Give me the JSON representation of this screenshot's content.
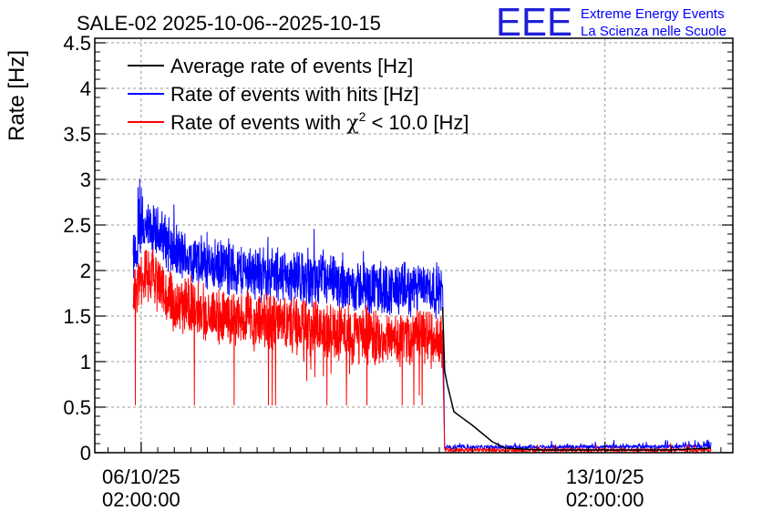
{
  "chart_data": {
    "type": "line",
    "title": "SALE-02 2025-10-06--2025-10-15",
    "ylabel": "Rate [Hz]",
    "xlabel": "",
    "ylim": [
      0,
      4.55
    ],
    "yticks": [
      0,
      0.5,
      1,
      1.5,
      2,
      2.5,
      3,
      3.5,
      4,
      4.5
    ],
    "ytick_labels": [
      "0",
      "0.5",
      "1",
      "1.5",
      "2",
      "2.5",
      "3",
      "3.5",
      "4",
      "4.5"
    ],
    "xlim_days": [
      -0.7,
      8.93
    ],
    "xticks": [
      {
        "day": 0,
        "line1": "06/10/25",
        "line2": "02:00:00"
      },
      {
        "day": 7,
        "line1": "13/10/25",
        "line2": "02:00:00"
      }
    ],
    "grid": true,
    "legend_position": "top-left",
    "legend": [
      {
        "label": "Average rate of events [Hz]",
        "color": "#000000"
      },
      {
        "label": "Rate of events with hits [Hz]",
        "color": "#0000ff"
      },
      {
        "label_pre": "Rate of events with ",
        "label_sym": "χ",
        "label_sup": "2",
        "label_post": " < 10.0 [Hz]",
        "color": "#ff0000"
      }
    ],
    "series": [
      {
        "name": "Average rate of events [Hz]",
        "color": "#000000",
        "x": [
          -0.12,
          0.5,
          1.0,
          2.0,
          3.0,
          4.0,
          4.55,
          4.58,
          4.62,
          4.72,
          5.0,
          5.3,
          5.5,
          6.0,
          7.0,
          8.0,
          8.6
        ],
        "y": [
          1.98,
          2.05,
          1.92,
          1.8,
          1.7,
          1.62,
          1.6,
          0.9,
          0.75,
          0.45,
          0.3,
          0.12,
          0.05,
          0.03,
          0.03,
          0.03,
          0.05
        ]
      },
      {
        "name": "Rate of events with hits [Hz]",
        "color": "#0000ff",
        "x": [
          -0.12,
          0.0,
          0.3,
          0.5,
          1.0,
          1.5,
          2.0,
          2.5,
          3.0,
          3.5,
          4.0,
          4.3,
          4.55
        ],
        "y": [
          2.1,
          2.45,
          2.4,
          2.2,
          2.05,
          2.0,
          1.95,
          1.9,
          1.85,
          1.8,
          1.78,
          1.82,
          1.75
        ],
        "after_x": [
          4.58,
          8.6
        ],
        "after_y": [
          0.05,
          0.06
        ],
        "peak": 3.08,
        "spread": 0.28
      },
      {
        "name": "Rate of events with chi2 < 10.0 [Hz]",
        "color": "#ff0000",
        "x": [
          -0.12,
          0.0,
          0.3,
          0.5,
          1.0,
          1.5,
          2.0,
          2.5,
          3.0,
          3.5,
          4.0,
          4.3,
          4.55
        ],
        "y": [
          1.7,
          1.95,
          1.85,
          1.65,
          1.55,
          1.45,
          1.42,
          1.38,
          1.33,
          1.28,
          1.25,
          1.28,
          1.2
        ],
        "after_x": [
          4.58,
          8.6
        ],
        "after_y": [
          0.02,
          0.02
        ],
        "min": 0.52,
        "spread": 0.3
      }
    ]
  },
  "header": {
    "logo_text": "EEE",
    "line1": "Extreme Energy Events",
    "line2": "La Scienza nelle Scuole"
  }
}
